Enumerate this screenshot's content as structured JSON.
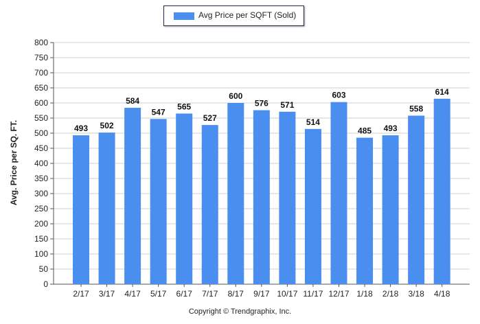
{
  "chart_data": {
    "type": "bar",
    "categories": [
      "2/17",
      "3/17",
      "4/17",
      "5/17",
      "6/17",
      "7/17",
      "8/17",
      "9/17",
      "10/17",
      "11/17",
      "12/17",
      "1/18",
      "2/18",
      "3/18",
      "4/18"
    ],
    "series": [
      {
        "name": "Avg Price per SQFT (Sold)",
        "values": [
          493,
          502,
          584,
          547,
          565,
          527,
          600,
          576,
          571,
          514,
          603,
          485,
          493,
          558,
          614
        ]
      }
    ],
    "ylabel": "Avg. Price per SQ. FT.",
    "xlabel": "",
    "ylim": [
      0,
      800
    ],
    "yticks": [
      0,
      50,
      100,
      150,
      200,
      250,
      300,
      350,
      400,
      450,
      500,
      550,
      600,
      650,
      700,
      750,
      800
    ],
    "grid": true,
    "legend_position": "top-center",
    "bar_color": "#4a8ef0"
  },
  "footer": "Copyright © Trendgraphix, Inc."
}
